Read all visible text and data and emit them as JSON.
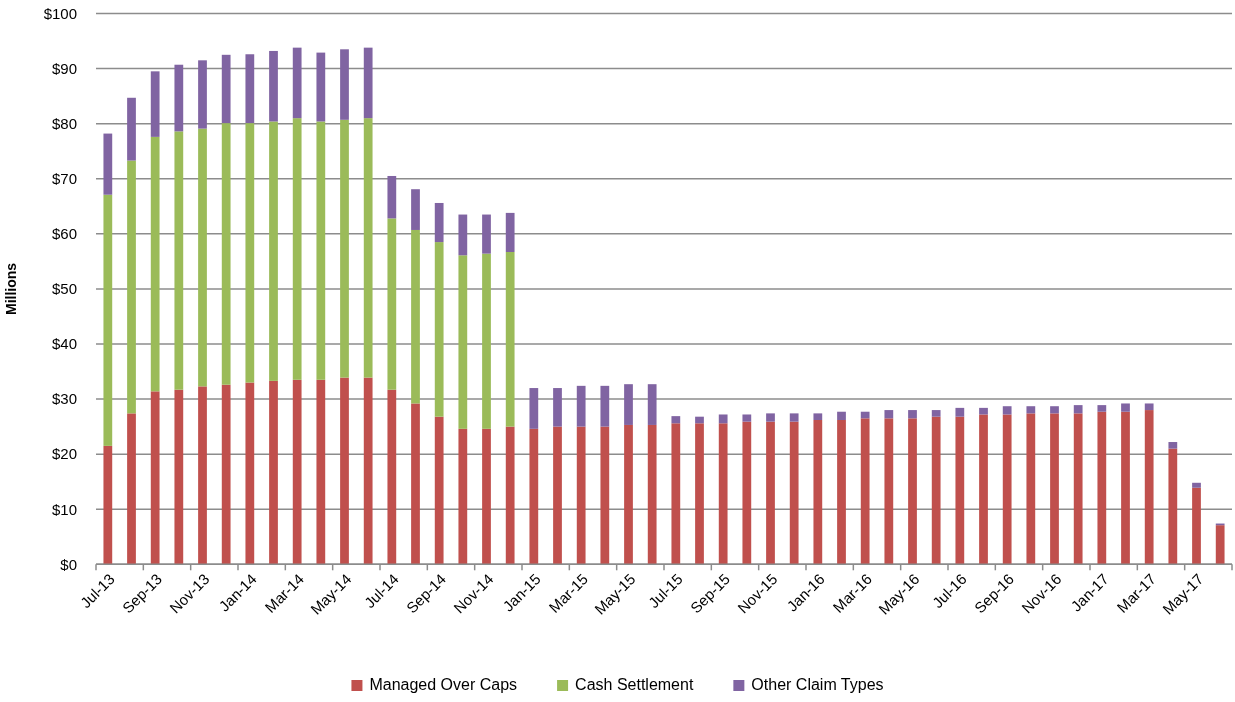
{
  "chart_data": {
    "type": "bar",
    "stacked": true,
    "ylabel": "Millions",
    "categories": [
      "Jul-13",
      null,
      "Sep-13",
      null,
      "Nov-13",
      null,
      "Jan-14",
      null,
      "Mar-14",
      null,
      "May-14",
      null,
      "Jul-14",
      null,
      "Sep-14",
      null,
      "Nov-14",
      null,
      "Jan-15",
      null,
      "Mar-15",
      null,
      "May-15",
      null,
      "Jul-15",
      null,
      "Sep-15",
      null,
      "Nov-15",
      null,
      "Jan-16",
      null,
      "Mar-16",
      null,
      "May-16",
      null,
      "Jul-16",
      null,
      "Sep-16",
      null,
      "Nov-16",
      null,
      "Jan-17",
      null,
      "Mar-17",
      null,
      "May-17",
      null
    ],
    "series": [
      {
        "name": "Managed Over Caps",
        "color": "#c0504d",
        "values": [
          21.5,
          27.4,
          31.4,
          31.7,
          32.3,
          32.6,
          33.0,
          33.3,
          33.5,
          33.5,
          33.9,
          33.9,
          31.7,
          29.2,
          26.8,
          24.6,
          24.6,
          25.0,
          24.6,
          25.0,
          25.0,
          25.0,
          25.3,
          25.3,
          25.6,
          25.6,
          25.6,
          25.9,
          25.9,
          25.9,
          26.2,
          26.2,
          26.5,
          26.5,
          26.5,
          26.8,
          26.8,
          27.2,
          27.2,
          27.4,
          27.4,
          27.4,
          27.7,
          27.7,
          28.0,
          21.0,
          13.9,
          7.1
        ]
      },
      {
        "name": "Cash Settlement",
        "color": "#9bbb59",
        "values": [
          45.6,
          45.9,
          46.2,
          46.9,
          46.8,
          47.5,
          47.1,
          47.1,
          47.5,
          46.9,
          46.8,
          47.1,
          31.1,
          31.5,
          31.7,
          31.5,
          31.8,
          31.7,
          null,
          null,
          null,
          null,
          null,
          null,
          null,
          null,
          null,
          null,
          null,
          null,
          null,
          null,
          null,
          null,
          null,
          null,
          null,
          null,
          null,
          null,
          null,
          null,
          null,
          null,
          null,
          null,
          null,
          null
        ]
      },
      {
        "name": "Other Claim Types",
        "color": "#8064a2",
        "values": [
          11.1,
          11.4,
          11.9,
          12.1,
          12.4,
          12.4,
          12.5,
          12.8,
          12.8,
          12.5,
          12.8,
          12.8,
          7.7,
          7.4,
          7.1,
          7.4,
          7.1,
          7.1,
          7.4,
          7.0,
          7.4,
          7.4,
          7.4,
          7.4,
          1.3,
          1.2,
          1.6,
          1.3,
          1.5,
          1.5,
          1.2,
          1.5,
          1.2,
          1.5,
          1.5,
          1.2,
          1.6,
          1.2,
          1.5,
          1.3,
          1.3,
          1.5,
          1.2,
          1.5,
          1.2,
          1.2,
          0.9,
          0.3
        ]
      }
    ],
    "ylim": [
      0,
      100
    ],
    "yticks": [
      {
        "value": 0,
        "label": "$0"
      },
      {
        "value": 10,
        "label": "$10"
      },
      {
        "value": 20,
        "label": "$20"
      },
      {
        "value": 30,
        "label": "$30"
      },
      {
        "value": 40,
        "label": "$40"
      },
      {
        "value": 50,
        "label": "$50"
      },
      {
        "value": 60,
        "label": "$60"
      },
      {
        "value": 70,
        "label": "$70"
      },
      {
        "value": 80,
        "label": "$80"
      },
      {
        "value": 90,
        "label": "$90"
      },
      {
        "value": 100,
        "label": "$100"
      }
    ],
    "grid": "y",
    "legend": "bottom"
  }
}
